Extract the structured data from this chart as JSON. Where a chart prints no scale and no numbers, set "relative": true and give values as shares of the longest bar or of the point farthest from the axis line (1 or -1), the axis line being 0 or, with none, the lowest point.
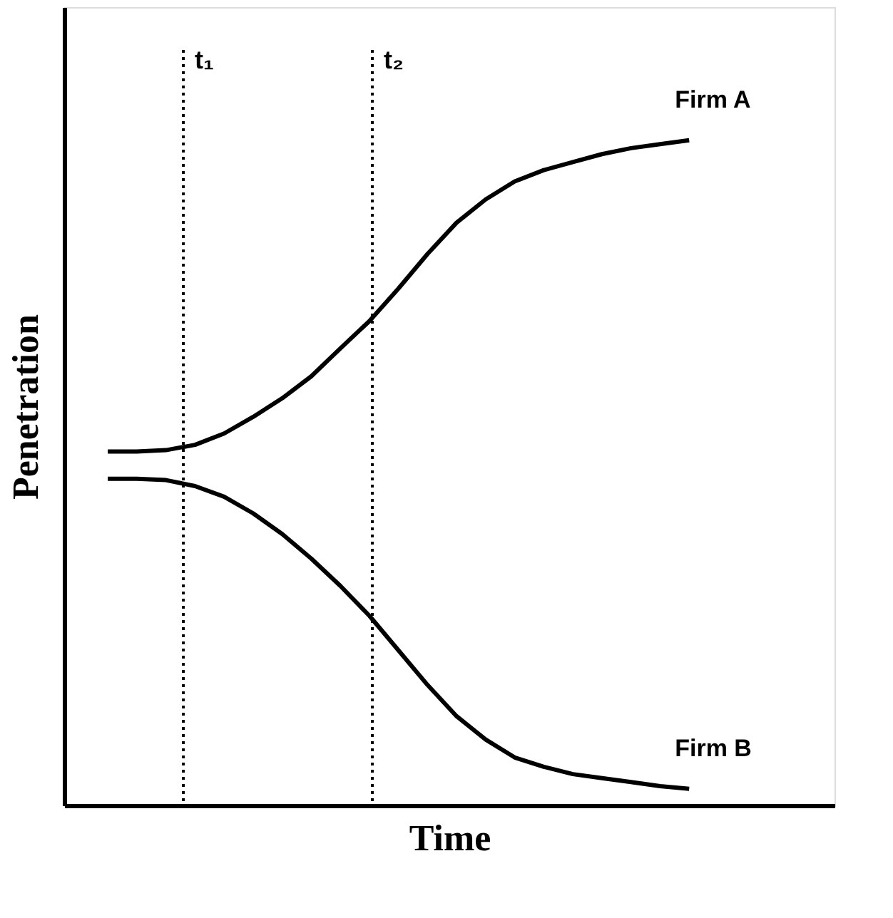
{
  "chart_data": {
    "type": "line",
    "relative": true,
    "xlabel": "Time",
    "ylabel": "Penetration",
    "categories": [
      null,
      null,
      null,
      null,
      null,
      null,
      null,
      null,
      null,
      null,
      null,
      null,
      null,
      null,
      null,
      null,
      null,
      null,
      null,
      null,
      null
    ],
    "series": [
      {
        "name": "Firm A",
        "color": "#000000",
        "values": [
          0.532,
          0.532,
          0.534,
          0.542,
          0.559,
          0.584,
          0.612,
          0.645,
          0.687,
          0.728,
          0.777,
          0.829,
          0.876,
          0.911,
          0.938,
          0.955,
          0.967,
          0.979,
          0.988,
          0.994,
          1
        ]
      },
      {
        "name": "Firm B",
        "color": "#000000",
        "values": [
          0.491,
          0.491,
          0.489,
          0.48,
          0.464,
          0.439,
          0.408,
          0.371,
          0.33,
          0.285,
          0.233,
          0.181,
          0.134,
          0.099,
          0.072,
          0.058,
          0.047,
          0.041,
          0.035,
          0.029,
          0.025
        ]
      }
    ],
    "annotations": [
      "t₁",
      "t₂"
    ],
    "legend": false,
    "grid": false,
    "tick_labels": false,
    "marker": "none",
    "line_style": "solid"
  }
}
